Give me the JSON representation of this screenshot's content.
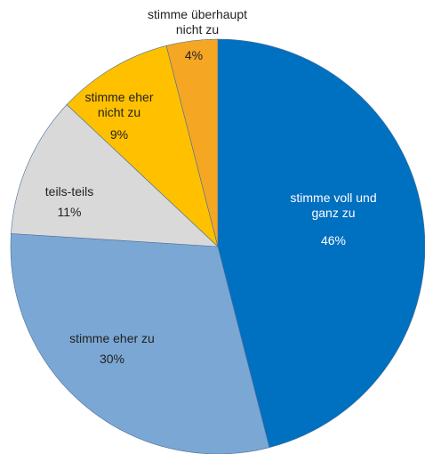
{
  "chart_data": {
    "type": "pie",
    "categories": [
      "stimme voll und\nganz zu",
      "stimme eher zu",
      "teils-teils",
      "stimme eher\nnicht zu",
      "stimme überhaupt\nnicht zu"
    ],
    "values": [
      46,
      30,
      11,
      9,
      4
    ],
    "value_labels": [
      "46%",
      "30%",
      "11%",
      "9%",
      "4%"
    ],
    "colors": [
      "#0070c0",
      "#7ba7d4",
      "#d9d9d9",
      "#ffc000",
      "#f5a623"
    ]
  }
}
